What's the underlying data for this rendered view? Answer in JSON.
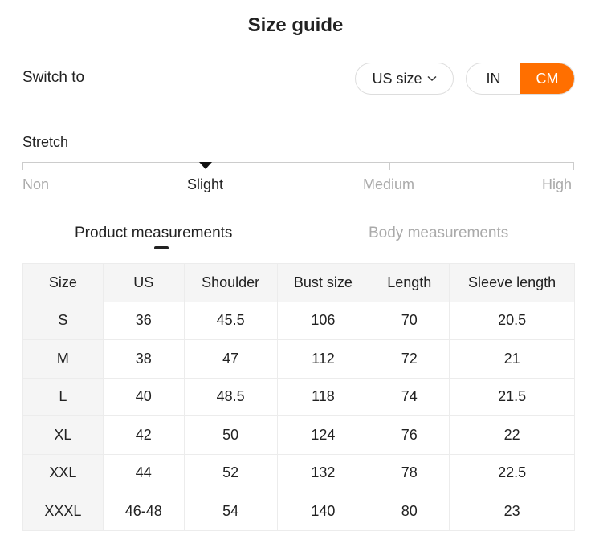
{
  "title": "Size guide",
  "switch_to": {
    "label": "Switch to",
    "size_system": "US size",
    "units": [
      "IN",
      "CM"
    ],
    "active_unit": "CM",
    "accent_color": "#ff6f00"
  },
  "stretch": {
    "label": "Stretch",
    "levels": [
      "Non",
      "Slight",
      "Medium",
      "High"
    ],
    "selected": "Slight"
  },
  "tabs": [
    {
      "label": "Product measurements",
      "active": true
    },
    {
      "label": "Body measurements",
      "active": false
    }
  ],
  "table": {
    "headers": [
      "Size",
      "US",
      "Shoulder",
      "Bust size",
      "Length",
      "Sleeve length"
    ],
    "rows": [
      [
        "S",
        "36",
        "45.5",
        "106",
        "70",
        "20.5"
      ],
      [
        "M",
        "38",
        "47",
        "112",
        "72",
        "21"
      ],
      [
        "L",
        "40",
        "48.5",
        "118",
        "74",
        "21.5"
      ],
      [
        "XL",
        "42",
        "50",
        "124",
        "76",
        "22"
      ],
      [
        "XXL",
        "44",
        "52",
        "132",
        "78",
        "22.5"
      ],
      [
        "XXXL",
        "46-48",
        "54",
        "140",
        "80",
        "23"
      ]
    ]
  }
}
